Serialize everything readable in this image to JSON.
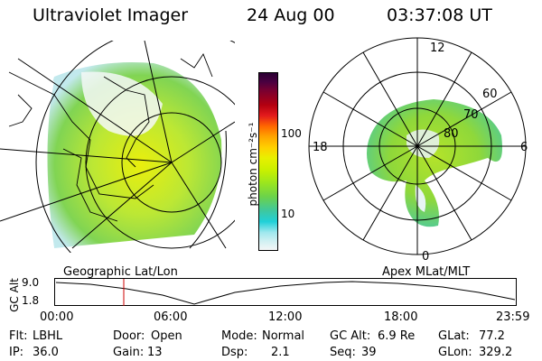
{
  "header": {
    "instrument": "Ultraviolet Imager",
    "date": "24 Aug 00",
    "time": "03:37:08 UT"
  },
  "colorbar": {
    "label": "photon cm⁻²s⁻¹",
    "ticks": [
      "100",
      "10"
    ],
    "colors": [
      "#2a0033",
      "#4a0040",
      "#7a0030",
      "#b30010",
      "#e31a1c",
      "#ff6600",
      "#ffa500",
      "#ffd000",
      "#e8f000",
      "#c8f000",
      "#9be61e",
      "#6bd24b",
      "#3dc8a0",
      "#20d0d8",
      "#9ee8ee",
      "#d0f0f2",
      "#f4f6f6"
    ]
  },
  "polar_plot": {
    "mlt_labels": {
      "top": "12",
      "right": "6",
      "bottom": "0",
      "left": "18"
    },
    "lat_labels": [
      "60",
      "70",
      "80"
    ]
  },
  "timeline": {
    "y_label": "GC Alt",
    "y_ticks": [
      "9.0",
      "1.8"
    ],
    "left_caption": "Geographic Lat/Lon",
    "right_caption": "Apex MLat/MLT",
    "x_ticks": [
      "00:00",
      "06:00",
      "12:00",
      "18:00",
      "23:59"
    ]
  },
  "status": {
    "row1": [
      {
        "key": "Flt:",
        "value": "LBHL"
      },
      {
        "key": "Door:",
        "value": "Open"
      },
      {
        "key": "Mode:",
        "value": "Normal"
      },
      {
        "key": "GC Alt:",
        "value": "6.9 Re"
      },
      {
        "key": "GLat:",
        "value": "77.2"
      }
    ],
    "row2": [
      {
        "key": "IP:",
        "value": "36.0"
      },
      {
        "key": "Gain:",
        "value": "13"
      },
      {
        "key": "Dsp:",
        "value": "2.1"
      },
      {
        "key": "Seq:",
        "value": "39"
      },
      {
        "key": "GLon:",
        "value": "329.2"
      }
    ]
  }
}
